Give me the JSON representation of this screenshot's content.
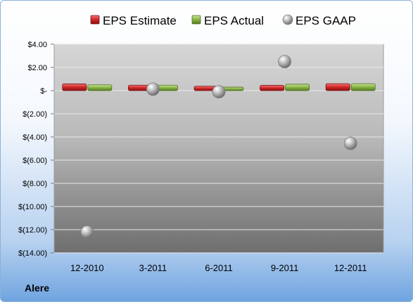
{
  "company": "Alere",
  "colors": {
    "estimate": "#d42a2a",
    "actual": "#8cb84a",
    "gaap": "#bfbfbf"
  },
  "chart_data": {
    "type": "bar",
    "categories": [
      "12-2010",
      "3-2011",
      "6-2011",
      "9-2011",
      "12-2011"
    ],
    "series": [
      {
        "name": "EPS Estimate",
        "kind": "bar",
        "values": [
          0.58,
          0.47,
          0.38,
          0.45,
          0.6
        ]
      },
      {
        "name": "EPS Actual",
        "kind": "bar",
        "values": [
          0.5,
          0.47,
          0.3,
          0.55,
          0.6
        ]
      },
      {
        "name": "EPS GAAP",
        "kind": "marker",
        "values": [
          -12.2,
          0.12,
          -0.1,
          2.5,
          -4.55
        ]
      }
    ],
    "ylim": [
      -14,
      4
    ],
    "y_ticks": [
      4,
      2,
      0,
      -2,
      -4,
      -6,
      -8,
      -10,
      -12,
      -14
    ],
    "y_tick_labels": [
      "$4.00",
      "$2.00",
      "$-",
      "$(2.00)",
      "$(4.00)",
      "$(6.00)",
      "$(8.00)",
      "$(10.00)",
      "$(12.00)",
      "$(14.00)"
    ],
    "legend_position": "top",
    "grid": true
  }
}
